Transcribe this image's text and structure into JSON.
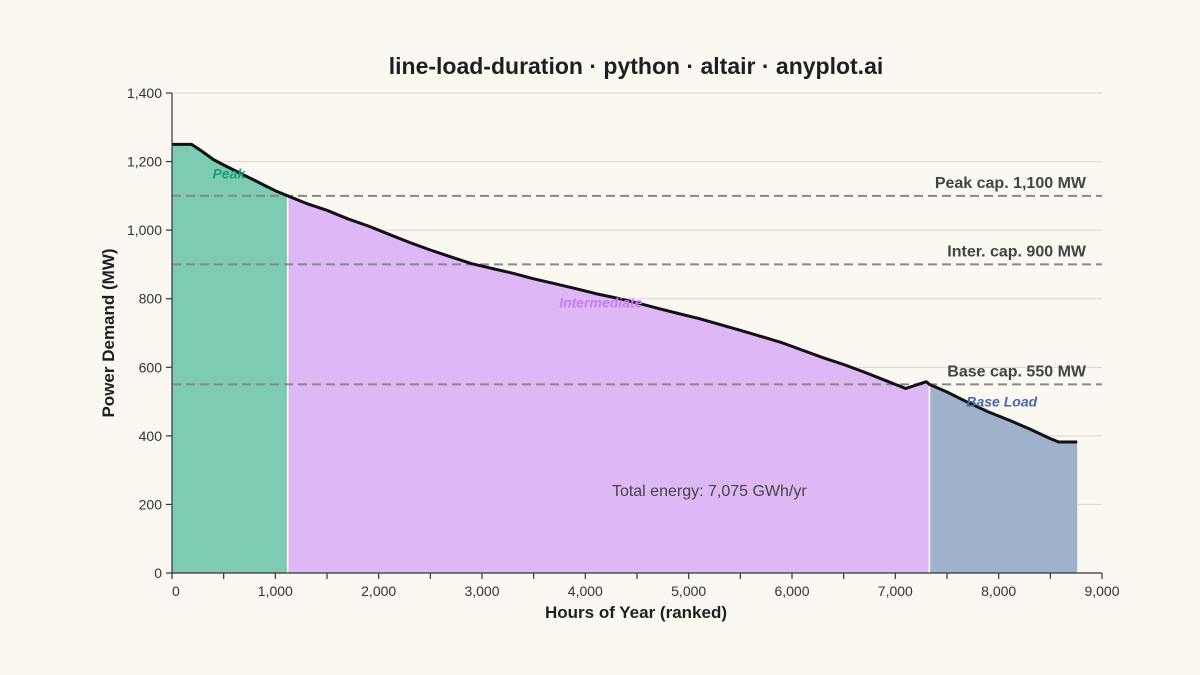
{
  "chart_data": {
    "type": "area",
    "title": "line-load-duration · python · altair · anyplot.ai",
    "xlabel": "Hours of Year (ranked)",
    "ylabel": "Power Demand (MW)",
    "xlim": [
      0,
      9000
    ],
    "ylim": [
      0,
      1400
    ],
    "x_ticks": [
      0,
      1000,
      2000,
      3000,
      4000,
      5000,
      6000,
      7000,
      8000,
      9000
    ],
    "x_tick_labels": [
      "0",
      "1,000",
      "2,000",
      "3,000",
      "4,000",
      "5,000",
      "6,000",
      "7,000",
      "8,000",
      "9,000"
    ],
    "y_ticks": [
      0,
      200,
      400,
      600,
      800,
      1000,
      1200,
      1400
    ],
    "y_tick_labels": [
      "0",
      "200",
      "400",
      "600",
      "800",
      "1,000",
      "1,200",
      "1,400"
    ],
    "grid": true,
    "curve": {
      "x": [
        0,
        190,
        250,
        300,
        400,
        500,
        600,
        700,
        800,
        900,
        1000,
        1120,
        1300,
        1500,
        1700,
        1900,
        2100,
        2300,
        2500,
        2700,
        2900,
        3100,
        3300,
        3500,
        3700,
        3900,
        4100,
        4300,
        4500,
        4700,
        4900,
        5100,
        5300,
        5500,
        5700,
        5900,
        6100,
        6300,
        6500,
        6700,
        6900,
        7100,
        7300,
        7330,
        7500,
        7700,
        7900,
        8100,
        8300,
        8500,
        8580,
        8760
      ],
      "y": [
        1250,
        1250,
        1238,
        1228,
        1206,
        1190,
        1175,
        1160,
        1145,
        1130,
        1115,
        1100,
        1078,
        1058,
        1033,
        1012,
        988,
        964,
        942,
        922,
        902,
        888,
        874,
        858,
        844,
        830,
        815,
        802,
        788,
        772,
        757,
        742,
        725,
        708,
        690,
        672,
        650,
        628,
        608,
        586,
        562,
        538,
        558,
        550,
        528,
        498,
        470,
        446,
        420,
        392,
        382,
        382
      ]
    },
    "regions": [
      {
        "name": "Peak",
        "x_start": 0,
        "x_end": 1120,
        "color": "#7DCBB2",
        "label_color": "#1A9E77",
        "label_x": 550,
        "label_y": 1150
      },
      {
        "name": "Intermediate",
        "x_start": 1120,
        "x_end": 7330,
        "color": "#DEB8F5",
        "label_color": "#C27FF0",
        "label_x": 4150,
        "label_y": 775
      },
      {
        "name": "Base Load",
        "x_start": 7330,
        "x_end": 8760,
        "color": "#9FB2CB",
        "label_color": "#4668A8",
        "label_x": 8030,
        "label_y": 485
      }
    ],
    "capacity_lines": [
      {
        "label": "Peak cap. 1,100 MW",
        "value": 1100
      },
      {
        "label": "Inter. cap. 900 MW",
        "value": 900
      },
      {
        "label": "Base cap. 550 MW",
        "value": 550
      }
    ],
    "annotation": {
      "text": "Total energy: 7,075 GWh/yr",
      "x": 5200,
      "y": 225
    }
  }
}
